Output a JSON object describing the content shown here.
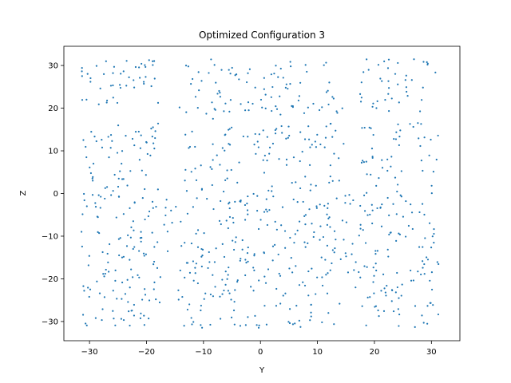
{
  "chart_data": {
    "type": "scatter",
    "title": "Optimized Configuration 3",
    "xlabel": "Y",
    "ylabel": "Z",
    "xlim": [
      -34.5,
      35
    ],
    "ylim": [
      -34.5,
      34.5
    ],
    "xticks": [
      -30,
      -20,
      -10,
      0,
      10,
      20,
      30
    ],
    "yticks": [
      -30,
      -20,
      -10,
      0,
      10,
      20,
      30
    ],
    "grid": false,
    "marker_color": "#1f77b4",
    "marker_size": 2,
    "generation": {
      "seed": 3,
      "x_range": [
        -31.5,
        31.5
      ],
      "y_range": [
        -31.5,
        31.5
      ],
      "count": 900,
      "sparse_bands": [
        {
          "x_from": -17.5,
          "x_to": -13.5,
          "y_from": 0.5,
          "y_to": 31.5
        },
        {
          "x_from": -17.5,
          "x_to": -14.5,
          "y_from": -31.5,
          "y_to": -18
        },
        {
          "x_from": 14.5,
          "x_to": 17.5,
          "y_from": 0.5,
          "y_to": 31.5
        },
        {
          "x_from": 14.5,
          "x_to": 17.5,
          "y_from": -31.5,
          "y_to": -19
        },
        {
          "x_from": -31.5,
          "x_to": 31.5,
          "y_from": 16.5,
          "y_to": 18.5
        }
      ]
    }
  }
}
